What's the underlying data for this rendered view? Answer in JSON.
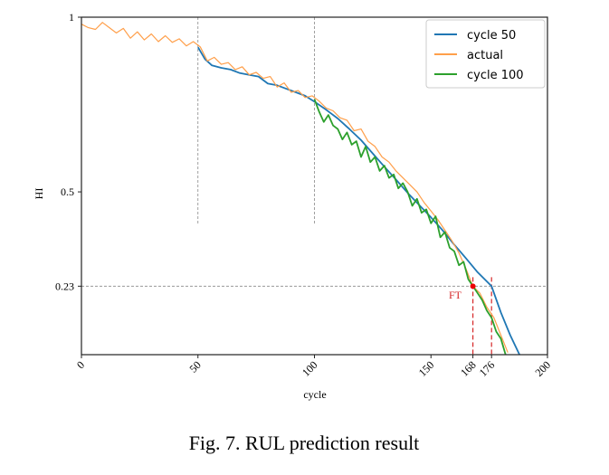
{
  "chart_data": {
    "type": "line",
    "title": "",
    "xlabel": "cycle",
    "ylabel": "HI",
    "xlim": [
      0,
      200
    ],
    "ylim": [
      0.034,
      1
    ],
    "xticks": [
      "0",
      "50",
      "100",
      "150",
      "168",
      "176",
      "200"
    ],
    "yticks": [
      "1",
      "0.5",
      "0.23"
    ],
    "threshold": 0.23,
    "ft_label": "FT",
    "ft_point": [
      168,
      0.23
    ],
    "prediction_starts": [
      50,
      100
    ],
    "legend_position": "top-right",
    "series": [
      {
        "name": "cycle 50",
        "color": "#1f77b4",
        "x": [
          50,
          53,
          56,
          60,
          64,
          68,
          72,
          76,
          80,
          84,
          88,
          92,
          96,
          100,
          105,
          110,
          115,
          120,
          125,
          130,
          135,
          140,
          145,
          150,
          155,
          160,
          165,
          170,
          176,
          180,
          184,
          188
        ],
        "y": [
          0.914,
          0.88,
          0.862,
          0.855,
          0.85,
          0.84,
          0.835,
          0.83,
          0.81,
          0.805,
          0.795,
          0.785,
          0.775,
          0.758,
          0.735,
          0.71,
          0.68,
          0.648,
          0.61,
          0.572,
          0.535,
          0.497,
          0.462,
          0.427,
          0.39,
          0.349,
          0.31,
          0.27,
          0.23,
          0.155,
          0.09,
          0.034
        ]
      },
      {
        "name": "actual",
        "color": "#ff9f4a",
        "x": [
          0,
          3,
          6,
          9,
          12,
          15,
          18,
          21,
          24,
          27,
          30,
          33,
          36,
          39,
          42,
          45,
          48,
          51,
          54,
          57,
          60,
          63,
          66,
          69,
          72,
          75,
          78,
          81,
          84,
          87,
          90,
          93,
          96,
          99,
          102,
          105,
          108,
          111,
          114,
          117,
          120,
          123,
          126,
          129,
          132,
          135,
          138,
          141,
          144,
          147,
          150,
          153,
          156,
          159,
          162,
          165,
          168,
          171,
          174,
          177,
          180,
          183
        ],
        "y": [
          0.98,
          0.97,
          0.965,
          0.985,
          0.97,
          0.955,
          0.968,
          0.94,
          0.958,
          0.935,
          0.952,
          0.93,
          0.947,
          0.928,
          0.938,
          0.918,
          0.93,
          0.915,
          0.875,
          0.885,
          0.865,
          0.87,
          0.85,
          0.858,
          0.835,
          0.842,
          0.825,
          0.83,
          0.8,
          0.812,
          0.785,
          0.79,
          0.77,
          0.775,
          0.76,
          0.74,
          0.732,
          0.712,
          0.705,
          0.675,
          0.68,
          0.645,
          0.63,
          0.6,
          0.585,
          0.56,
          0.54,
          0.52,
          0.5,
          0.47,
          0.445,
          0.42,
          0.39,
          0.36,
          0.325,
          0.28,
          0.23,
          0.21,
          0.17,
          0.14,
          0.09,
          0.04
        ]
      },
      {
        "name": "cycle 100",
        "color": "#2ca02c",
        "x": [
          100,
          102,
          104,
          106,
          108,
          110,
          112,
          114,
          116,
          118,
          120,
          122,
          124,
          126,
          128,
          130,
          132,
          134,
          136,
          138,
          140,
          142,
          144,
          146,
          148,
          150,
          152,
          154,
          156,
          158,
          160,
          162,
          164,
          166,
          168,
          170,
          172,
          174,
          176,
          178,
          180,
          182
        ],
        "y": [
          0.765,
          0.73,
          0.7,
          0.72,
          0.69,
          0.68,
          0.65,
          0.67,
          0.635,
          0.645,
          0.6,
          0.63,
          0.585,
          0.6,
          0.56,
          0.575,
          0.54,
          0.55,
          0.51,
          0.525,
          0.5,
          0.46,
          0.48,
          0.44,
          0.45,
          0.41,
          0.43,
          0.37,
          0.385,
          0.34,
          0.33,
          0.29,
          0.3,
          0.25,
          0.23,
          0.21,
          0.19,
          0.16,
          0.14,
          0.1,
          0.08,
          0.034
        ]
      }
    ]
  },
  "caption": "Fig. 7. RUL prediction result"
}
